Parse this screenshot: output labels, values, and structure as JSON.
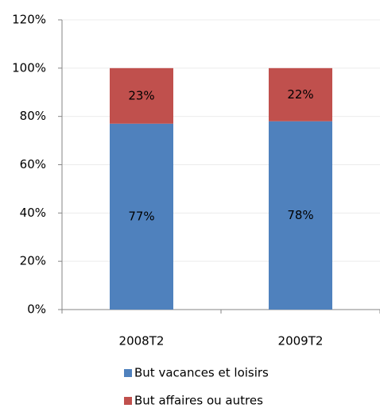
{
  "chart_data": {
    "type": "stacked-bar",
    "categories": [
      "2008T2",
      "2009T2"
    ],
    "series": [
      {
        "name": "But vacances et loisirs",
        "color": "#4f81bd",
        "values": [
          77,
          78
        ],
        "value_labels": [
          "77%",
          "78%"
        ]
      },
      {
        "name": "But affaires ou autres",
        "color": "#c0504d",
        "values": [
          23,
          22
        ],
        "value_labels": [
          "23%",
          "22%"
        ]
      }
    ],
    "ylim": [
      0,
      120
    ],
    "yticks": [
      {
        "value": 0,
        "label": "0%"
      },
      {
        "value": 20,
        "label": "20%"
      },
      {
        "value": 40,
        "label": "40%"
      },
      {
        "value": 60,
        "label": "60%"
      },
      {
        "value": 80,
        "label": "80%"
      },
      {
        "value": 100,
        "label": "100%"
      },
      {
        "value": 120,
        "label": "120%"
      }
    ],
    "grid": true
  }
}
